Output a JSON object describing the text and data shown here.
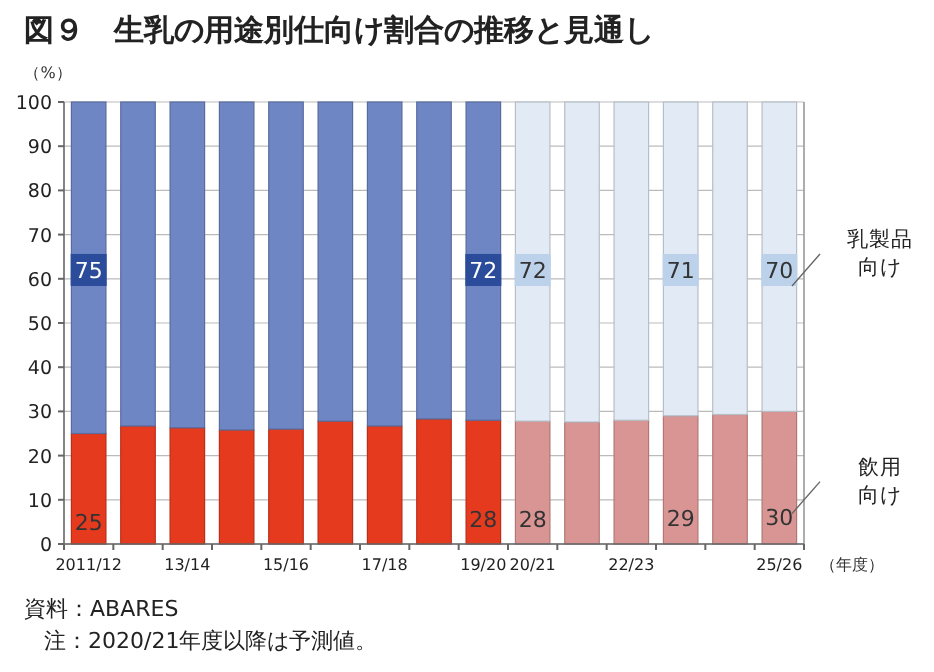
{
  "chart_data": {
    "type": "bar",
    "title": "図９　生乳の用途別仕向け割合の推移と見通し",
    "ylabel": "（%）",
    "xlabel": "（年度）",
    "categories": [
      "2011/12",
      null,
      "13/14",
      null,
      "15/16",
      null,
      "17/18",
      null,
      "19/20",
      "20/21",
      null,
      "22/23",
      null,
      null,
      "25/26"
    ],
    "stacked": true,
    "ylim": [
      0,
      100
    ],
    "yticks": [
      0,
      10,
      20,
      30,
      40,
      50,
      60,
      70,
      80,
      90,
      100
    ],
    "grid": "y",
    "series": [
      {
        "name": "飲用向け",
        "colors": [
          "#e63a1f",
          "#e63a1f",
          "#e63a1f",
          "#e63a1f",
          "#e63a1f",
          "#e63a1f",
          "#e63a1f",
          "#e63a1f",
          "#e63a1f",
          "#d99594",
          "#d99594",
          "#d99594",
          "#d99594",
          "#d99594",
          "#d99594"
        ],
        "values": [
          25,
          26.7,
          26.3,
          25.8,
          26,
          27.8,
          26.7,
          28.3,
          28,
          27.8,
          27.6,
          28,
          29,
          29.3,
          30
        ],
        "value_labels": [
          "25",
          null,
          null,
          null,
          null,
          null,
          null,
          null,
          "28",
          "28",
          null,
          null,
          "29",
          null,
          "30"
        ]
      },
      {
        "name": "乳製品向け",
        "colors": [
          "#6f86c4",
          "#6f86c4",
          "#6f86c4",
          "#6f86c4",
          "#6f86c4",
          "#6f86c4",
          "#6f86c4",
          "#6f86c4",
          "#6f86c4",
          "#e2ebf5",
          "#e2ebf5",
          "#e2ebf5",
          "#e2ebf5",
          "#e2ebf5",
          "#e2ebf5"
        ],
        "values": [
          75,
          73.3,
          73.7,
          74.2,
          74,
          72.2,
          73.3,
          71.7,
          72,
          72.2,
          72.4,
          72,
          71,
          70.7,
          70
        ],
        "value_labels": [
          "75",
          null,
          null,
          null,
          null,
          null,
          null,
          null,
          "72",
          "72",
          null,
          null,
          "71",
          null,
          "70"
        ]
      }
    ],
    "annotations": [
      "資料：ABARES",
      "注：2020/21年度以降は予測値。"
    ]
  }
}
